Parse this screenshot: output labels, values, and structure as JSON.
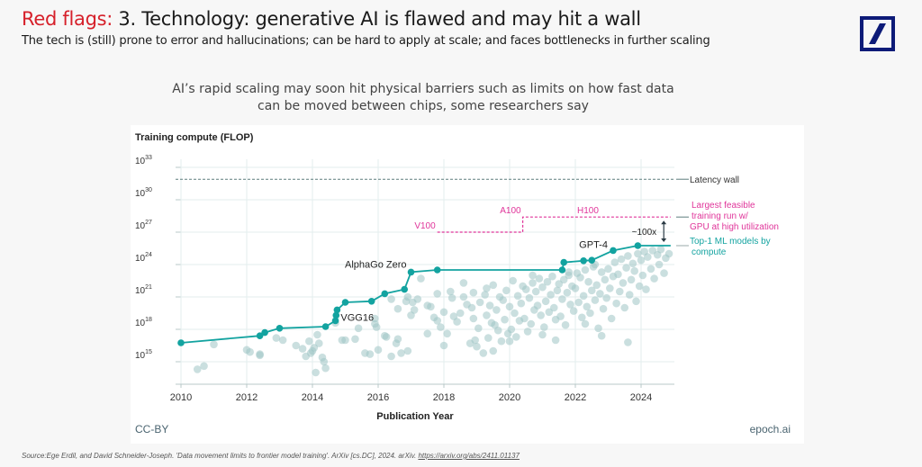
{
  "header": {
    "title_prefix": "Red flags:",
    "title_rest": " 3. Technology: generative AI is flawed and may hit a wall",
    "subtitle": "The tech is (still) prone to error and hallucinations; can be hard to apply at scale; and faces bottlenecks in further scaling",
    "logo": "deutsche-bank-logo",
    "accent_color": "#d6202a",
    "logo_color": "#0d1b78"
  },
  "headline": {
    "line1": "AI’s rapid scaling may soon hit physical barriers such as limits on how fast data",
    "line2": "can be moved between chips, some researchers say"
  },
  "footer": {
    "license": "CC-BY",
    "brand": "epoch.ai",
    "source_text": "Source:Ege Erdil, and David Schneider-Joseph. 'Data movement limits to frontier model training'. ArXiv [cs.DC], 2024. arXiv. ",
    "source_link": "https://arxiv.org/abs/2411.01137"
  },
  "chart_data": {
    "type": "scatter",
    "title": "",
    "ylabel": "Training compute (FLOP)",
    "xlabel": "Publication Year",
    "y_scale": "log10",
    "ylim_exp": [
      12.9,
      33
    ],
    "xlim": [
      2009.3,
      2025.0
    ],
    "x_ticks": [
      2010,
      2012,
      2014,
      2016,
      2018,
      2020,
      2022,
      2024
    ],
    "y_ticks": [
      {
        "exp": 33,
        "base": "10",
        "sup": "33"
      },
      {
        "exp": 30,
        "base": "10",
        "sup": "30"
      },
      {
        "exp": 27,
        "base": "10",
        "sup": "27"
      },
      {
        "exp": 24,
        "base": "10",
        "sup": "24"
      },
      {
        "exp": 21,
        "base": "10",
        "sup": "21"
      },
      {
        "exp": 18,
        "base": "10",
        "sup": "18"
      },
      {
        "exp": 15,
        "base": "10",
        "sup": "15"
      }
    ],
    "grid": true,
    "colors": {
      "frontier": "#13a3a0",
      "scatter": "#9fc4c4",
      "gpu": "#e0359a",
      "latency": "#5d7d7d",
      "arrow": "#2a3a44"
    },
    "latency_wall": {
      "label": "Latency wall",
      "exp": 31.9
    },
    "gpu_limits": {
      "label_lines": [
        "Largest feasible",
        "training run w/",
        "GPU at high utilization"
      ],
      "steps": [
        {
          "name": "V100",
          "from": 2017.8,
          "to": 2020.4,
          "exp": 27.0
        },
        {
          "name": "A100",
          "from": 2020.4,
          "to": 2022.0,
          "exp": 28.4
        },
        {
          "name": "H100",
          "from": 2022.0,
          "to": 2024.9,
          "exp": 28.4
        }
      ]
    },
    "gap_annotation": {
      "label": "~100x",
      "year": 2024.8,
      "from_exp": 25.75,
      "to_exp": 28.4
    },
    "frontier_series": {
      "name": "Top-1 ML models by compute",
      "label_lines": [
        "Top-1 ML models by",
        "compute"
      ],
      "points": [
        [
          2010.0,
          16.75
        ],
        [
          2012.4,
          17.4
        ],
        [
          2012.55,
          17.7
        ],
        [
          2013.0,
          18.1
        ],
        [
          2014.4,
          18.25
        ],
        [
          2014.7,
          18.8
        ],
        [
          2014.72,
          19.3
        ],
        [
          2014.75,
          19.8
        ],
        [
          2015.0,
          20.5
        ],
        [
          2015.8,
          20.6
        ],
        [
          2016.2,
          21.3
        ],
        [
          2016.8,
          21.7
        ],
        [
          2017.0,
          23.3
        ],
        [
          2017.8,
          23.5
        ],
        [
          2021.6,
          23.5
        ],
        [
          2021.65,
          24.2
        ],
        [
          2022.25,
          24.35
        ],
        [
          2022.5,
          24.4
        ],
        [
          2023.15,
          25.3
        ],
        [
          2023.9,
          25.75
        ],
        [
          2024.9,
          25.75
        ]
      ],
      "labels": [
        {
          "text": "VGG16",
          "year": 2014.75,
          "exp": 19.3
        },
        {
          "text": "AlphaGo Zero",
          "year": 2017.0,
          "exp": 23.3
        },
        {
          "text": "GPT-4",
          "year": 2023.15,
          "exp": 25.3
        }
      ]
    },
    "other_models": [
      [
        2010.5,
        14.3
      ],
      [
        2010.7,
        14.6
      ],
      [
        2011.0,
        16.6
      ],
      [
        2012.0,
        16.1
      ],
      [
        2012.1,
        15.9
      ],
      [
        2012.4,
        15.6
      ],
      [
        2012.4,
        15.7
      ],
      [
        2012.9,
        17.2
      ],
      [
        2013.1,
        17.0
      ],
      [
        2013.5,
        16.5
      ],
      [
        2013.7,
        16.2
      ],
      [
        2013.8,
        15.5
      ],
      [
        2013.9,
        16.9
      ],
      [
        2013.95,
        15.8
      ],
      [
        2014.0,
        16.0
      ],
      [
        2014.05,
        16.3
      ],
      [
        2014.15,
        17.5
      ],
      [
        2014.2,
        16.7
      ],
      [
        2014.3,
        15.4
      ],
      [
        2014.35,
        15.0
      ],
      [
        2014.4,
        14.4
      ],
      [
        2014.1,
        14.0
      ],
      [
        2014.7,
        18.6
      ],
      [
        2014.9,
        17.0
      ],
      [
        2015.0,
        17.0
      ],
      [
        2015.3,
        17.1
      ],
      [
        2015.4,
        18.1
      ],
      [
        2015.6,
        15.8
      ],
      [
        2015.75,
        15.7
      ],
      [
        2015.9,
        18.5
      ],
      [
        2015.95,
        18.2
      ],
      [
        2016.0,
        16.1
      ],
      [
        2016.2,
        17.4
      ],
      [
        2016.25,
        17.3
      ],
      [
        2016.4,
        15.5
      ],
      [
        2016.55,
        16.7
      ],
      [
        2016.6,
        17.1
      ],
      [
        2016.7,
        15.8
      ],
      [
        2016.85,
        20.6
      ],
      [
        2016.9,
        21.0
      ],
      [
        2017.0,
        19.3
      ],
      [
        2017.05,
        20.5
      ],
      [
        2017.1,
        19.8
      ],
      [
        2017.2,
        20.8
      ],
      [
        2017.3,
        22.7
      ],
      [
        2017.5,
        20.2
      ],
      [
        2017.6,
        20.1
      ],
      [
        2017.7,
        19.1
      ],
      [
        2017.8,
        18.8
      ],
      [
        2017.9,
        18.2
      ],
      [
        2018.0,
        19.6
      ],
      [
        2018.1,
        17.6
      ],
      [
        2018.2,
        21.5
      ],
      [
        2018.25,
        20.9
      ],
      [
        2018.3,
        19.2
      ],
      [
        2018.4,
        18.7
      ],
      [
        2018.5,
        19.5
      ],
      [
        2018.6,
        21.0
      ],
      [
        2018.7,
        20.3
      ],
      [
        2018.8,
        16.7
      ],
      [
        2018.85,
        20.0
      ],
      [
        2018.9,
        19.0
      ],
      [
        2018.95,
        17.0
      ],
      [
        2019.0,
        16.4
      ],
      [
        2019.05,
        18.1
      ],
      [
        2019.1,
        20.5
      ],
      [
        2019.2,
        15.8
      ],
      [
        2019.25,
        21.2
      ],
      [
        2019.3,
        19.3
      ],
      [
        2019.35,
        17.2
      ],
      [
        2019.4,
        20.2
      ],
      [
        2019.45,
        18.6
      ],
      [
        2019.5,
        22.1
      ],
      [
        2019.55,
        18.4
      ],
      [
        2019.6,
        19.8
      ],
      [
        2019.65,
        17.9
      ],
      [
        2019.7,
        21.0
      ],
      [
        2019.75,
        16.9
      ],
      [
        2019.8,
        20.7
      ],
      [
        2019.85,
        18.9
      ],
      [
        2019.9,
        21.6
      ],
      [
        2019.95,
        17.6
      ],
      [
        2020.0,
        20.1
      ],
      [
        2020.05,
        18.0
      ],
      [
        2020.1,
        22.5
      ],
      [
        2020.15,
        19.5
      ],
      [
        2020.2,
        17.3
      ],
      [
        2020.25,
        21.1
      ],
      [
        2020.3,
        18.8
      ],
      [
        2020.35,
        20.4
      ],
      [
        2020.4,
        22.0
      ],
      [
        2020.45,
        19.0
      ],
      [
        2020.5,
        21.7
      ],
      [
        2020.55,
        17.8
      ],
      [
        2020.6,
        20.9
      ],
      [
        2020.65,
        18.5
      ],
      [
        2020.7,
        22.3
      ],
      [
        2020.75,
        19.8
      ],
      [
        2020.8,
        21.5
      ],
      [
        2020.85,
        20.2
      ],
      [
        2020.9,
        22.7
      ],
      [
        2020.95,
        19.3
      ],
      [
        2021.0,
        21.9
      ],
      [
        2021.05,
        18.2
      ],
      [
        2021.1,
        20.6
      ],
      [
        2021.15,
        22.4
      ],
      [
        2021.2,
        19.6
      ],
      [
        2021.25,
        21.2
      ],
      [
        2021.3,
        22.9
      ],
      [
        2021.35,
        20.0
      ],
      [
        2021.4,
        18.9
      ],
      [
        2021.45,
        21.6
      ],
      [
        2021.5,
        22.2
      ],
      [
        2021.55,
        19.2
      ],
      [
        2021.6,
        20.8
      ],
      [
        2021.65,
        22.6
      ],
      [
        2021.7,
        18.4
      ],
      [
        2021.75,
        21.4
      ],
      [
        2021.8,
        23.0
      ],
      [
        2021.85,
        20.3
      ],
      [
        2021.9,
        22.0
      ],
      [
        2021.95,
        19.7
      ],
      [
        2022.0,
        21.8
      ],
      [
        2022.05,
        23.2
      ],
      [
        2022.1,
        20.5
      ],
      [
        2022.15,
        22.8
      ],
      [
        2022.2,
        19.1
      ],
      [
        2022.25,
        21.1
      ],
      [
        2022.3,
        23.5
      ],
      [
        2022.35,
        20.1
      ],
      [
        2022.4,
        22.4
      ],
      [
        2022.45,
        19.5
      ],
      [
        2022.5,
        21.6
      ],
      [
        2022.55,
        23.8
      ],
      [
        2022.6,
        20.7
      ],
      [
        2022.65,
        22.1
      ],
      [
        2022.7,
        18.1
      ],
      [
        2022.75,
        21.3
      ],
      [
        2022.8,
        23.3
      ],
      [
        2022.85,
        19.9
      ],
      [
        2022.9,
        22.6
      ],
      [
        2022.95,
        20.9
      ],
      [
        2023.0,
        23.6
      ],
      [
        2023.05,
        21.8
      ],
      [
        2023.1,
        19.0
      ],
      [
        2023.15,
        22.9
      ],
      [
        2023.2,
        24.2
      ],
      [
        2023.25,
        20.4
      ],
      [
        2023.3,
        23.1
      ],
      [
        2023.35,
        21.5
      ],
      [
        2023.4,
        24.5
      ],
      [
        2023.45,
        22.3
      ],
      [
        2023.5,
        20.0
      ],
      [
        2023.55,
        23.7
      ],
      [
        2023.6,
        24.8
      ],
      [
        2023.65,
        21.2
      ],
      [
        2023.7,
        22.6
      ],
      [
        2023.75,
        24.1
      ],
      [
        2023.8,
        23.4
      ],
      [
        2023.85,
        20.6
      ],
      [
        2023.9,
        25.0
      ],
      [
        2023.95,
        22.0
      ],
      [
        2024.0,
        24.4
      ],
      [
        2024.05,
        23.0
      ],
      [
        2024.1,
        25.2
      ],
      [
        2024.15,
        21.7
      ],
      [
        2024.2,
        24.7
      ],
      [
        2024.3,
        23.6
      ],
      [
        2024.35,
        25.3
      ],
      [
        2024.4,
        22.7
      ],
      [
        2024.5,
        24.9
      ],
      [
        2024.55,
        24.0
      ],
      [
        2024.6,
        25.4
      ],
      [
        2024.7,
        23.2
      ],
      [
        2024.75,
        24.6
      ],
      [
        2024.85,
        25.0
      ],
      [
        2022.8,
        17.4
      ],
      [
        2023.6,
        16.8
      ],
      [
        2021.0,
        17.5
      ],
      [
        2019.5,
        16.0
      ],
      [
        2018.0,
        16.5
      ],
      [
        2020.0,
        16.9
      ],
      [
        2021.4,
        17.0
      ],
      [
        2017.5,
        17.6
      ],
      [
        2016.9,
        16.0
      ],
      [
        2022.3,
        18.5
      ],
      [
        2019.3,
        21.8
      ],
      [
        2018.6,
        22.3
      ],
      [
        2020.7,
        23.0
      ],
      [
        2021.8,
        23.3
      ],
      [
        2022.6,
        24.0
      ],
      [
        2018.9,
        21.4
      ],
      [
        2017.8,
        21.3
      ],
      [
        2016.6,
        19.9
      ],
      [
        2016.4,
        20.8
      ],
      [
        2015.9,
        19.0
      ]
    ]
  }
}
